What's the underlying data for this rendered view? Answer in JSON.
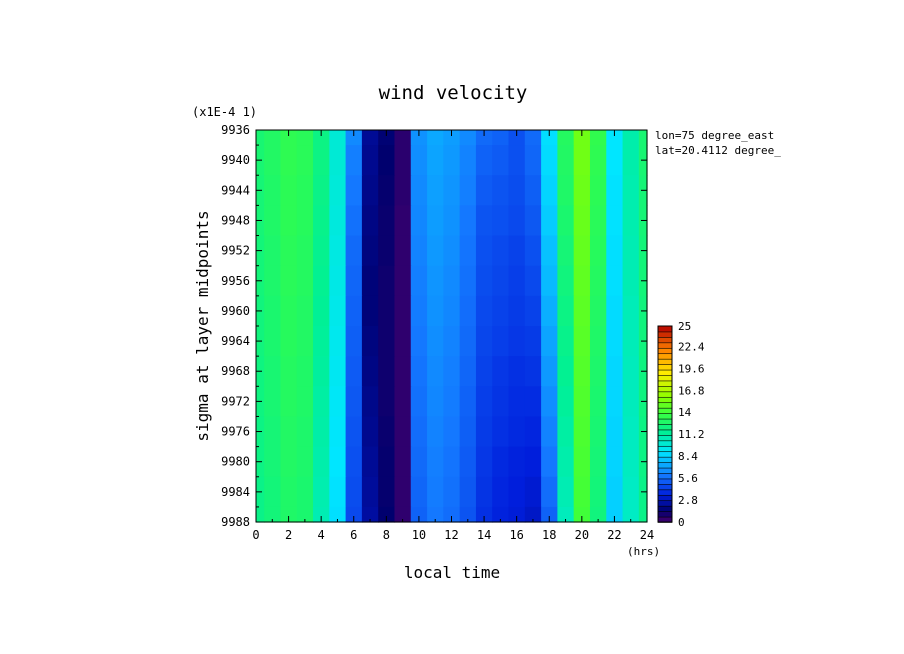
{
  "chart_data": {
    "type": "heatmap",
    "title": "wind velocity",
    "scale_label": "(x1E-4 1)",
    "xlabel": "local time",
    "xunits": "(hrs)",
    "ylabel": "sigma at layer midpoints",
    "annotations": [
      "lon=75 degree_east",
      "lat=20.4112 degree_"
    ],
    "xlim": [
      0,
      24
    ],
    "ylim": [
      9936,
      9988
    ],
    "y_inverted": true,
    "x_ticks": [
      "0",
      "2",
      "4",
      "6",
      "8",
      "10",
      "12",
      "14",
      "16",
      "18",
      "20",
      "22",
      "24"
    ],
    "y_ticks": [
      "9936",
      "9940",
      "9944",
      "9948",
      "9952",
      "9956",
      "9960",
      "9964",
      "9968",
      "9972",
      "9976",
      "9980",
      "9984",
      "9988"
    ],
    "colorbar": {
      "range": [
        0,
        25
      ],
      "tick_labels": [
        "0",
        "2.8",
        "5.6",
        "8.4",
        "11.2",
        "14",
        "16.8",
        "19.6",
        "22.4",
        "25"
      ]
    },
    "x": [
      0,
      1,
      2,
      3,
      4,
      5,
      6,
      7,
      8,
      9,
      10,
      11,
      12,
      13,
      14,
      15,
      16,
      17,
      18,
      19,
      20,
      21,
      22,
      23,
      24
    ],
    "values": [
      [
        12.5,
        12.9,
        13.4,
        13.2,
        12.0,
        10.0,
        6.5,
        2.2,
        1.6,
        0.6,
        6.7,
        7.3,
        7.0,
        6.5,
        5.6,
        5.4,
        4.9,
        5.6,
        8.8,
        13.0,
        15.3,
        13.5,
        9.0,
        11.0,
        12.5
      ],
      [
        12.5,
        12.9,
        13.4,
        13.2,
        12.0,
        10.0,
        6.2,
        2.1,
        1.5,
        0.6,
        6.6,
        7.2,
        6.9,
        6.3,
        5.4,
        5.2,
        4.9,
        5.5,
        8.7,
        12.9,
        15.3,
        13.4,
        9.0,
        11.0,
        12.5
      ],
      [
        12.4,
        12.8,
        13.3,
        13.1,
        11.9,
        9.9,
        6.0,
        2.0,
        1.4,
        0.6,
        6.5,
        7.1,
        6.8,
        6.2,
        5.2,
        5.0,
        4.8,
        5.3,
        8.5,
        12.8,
        15.2,
        13.3,
        8.9,
        10.9,
        12.4
      ],
      [
        12.4,
        12.8,
        13.3,
        13.1,
        11.8,
        9.8,
        5.8,
        1.9,
        1.3,
        0.5,
        6.4,
        7.0,
        6.7,
        6.0,
        5.0,
        4.9,
        4.7,
        5.1,
        8.3,
        12.6,
        15.1,
        13.2,
        8.9,
        10.9,
        12.4
      ],
      [
        12.3,
        12.7,
        13.2,
        13.0,
        11.7,
        9.7,
        5.6,
        1.8,
        1.3,
        0.5,
        6.3,
        6.9,
        6.6,
        5.9,
        4.9,
        4.7,
        4.5,
        4.9,
        8.0,
        12.4,
        15.0,
        13.1,
        8.8,
        10.8,
        12.3
      ],
      [
        12.3,
        12.7,
        13.2,
        13.0,
        11.6,
        9.6,
        5.5,
        1.7,
        1.2,
        0.5,
        6.2,
        6.8,
        6.5,
        5.8,
        4.8,
        4.6,
        4.4,
        4.7,
        7.8,
        12.2,
        14.9,
        13.0,
        8.8,
        10.8,
        12.3
      ],
      [
        12.2,
        12.6,
        13.1,
        12.9,
        11.5,
        9.5,
        5.4,
        1.7,
        1.2,
        0.5,
        6.1,
        6.7,
        6.4,
        5.7,
        4.7,
        4.5,
        4.3,
        4.5,
        7.5,
        12.0,
        14.8,
        12.9,
        8.7,
        10.7,
        12.2
      ],
      [
        12.2,
        12.6,
        13.1,
        12.9,
        11.4,
        9.4,
        5.3,
        1.8,
        1.2,
        0.5,
        6.0,
        6.6,
        6.3,
        5.6,
        4.6,
        4.4,
        4.2,
        4.3,
        7.2,
        11.8,
        14.7,
        12.8,
        8.7,
        10.7,
        12.2
      ],
      [
        12.1,
        12.5,
        13.0,
        12.8,
        11.3,
        9.3,
        5.2,
        1.9,
        1.2,
        0.5,
        5.9,
        6.5,
        6.2,
        5.5,
        4.5,
        4.2,
        4.0,
        4.1,
        6.9,
        11.6,
        14.6,
        12.7,
        8.6,
        10.6,
        12.1
      ],
      [
        12.1,
        12.5,
        13.0,
        12.8,
        11.2,
        9.2,
        5.1,
        2.0,
        1.2,
        0.5,
        5.8,
        6.4,
        6.1,
        5.4,
        4.4,
        4.1,
        3.9,
        3.9,
        6.6,
        11.4,
        14.5,
        12.6,
        8.6,
        10.6,
        12.1
      ],
      [
        12.0,
        12.4,
        12.9,
        12.7,
        11.1,
        9.1,
        5.0,
        2.1,
        1.3,
        0.5,
        5.7,
        6.3,
        6.0,
        5.3,
        4.3,
        4.0,
        3.8,
        3.7,
        6.3,
        11.2,
        14.4,
        12.5,
        8.5,
        10.5,
        12.0
      ],
      [
        12.0,
        12.4,
        12.9,
        12.7,
        11.0,
        9.0,
        4.9,
        2.2,
        1.4,
        0.5,
        5.6,
        6.2,
        5.9,
        5.2,
        4.2,
        3.8,
        3.6,
        3.5,
        6.0,
        11.0,
        14.3,
        12.4,
        8.5,
        10.5,
        12.0
      ],
      [
        11.9,
        12.3,
        12.8,
        12.6,
        10.9,
        8.9,
        4.8,
        2.3,
        1.4,
        0.5,
        5.5,
        6.1,
        5.8,
        5.1,
        4.1,
        3.7,
        3.5,
        3.3,
        5.7,
        10.8,
        14.2,
        12.3,
        8.4,
        10.4,
        11.9
      ],
      [
        11.9,
        12.3,
        12.8,
        12.6,
        10.8,
        8.8,
        4.7,
        2.4,
        1.5,
        0.5,
        5.4,
        6.0,
        5.7,
        5.0,
        4.0,
        3.6,
        3.4,
        3.1,
        5.4,
        10.6,
        14.1,
        12.2,
        8.4,
        10.4,
        11.9
      ]
    ]
  }
}
